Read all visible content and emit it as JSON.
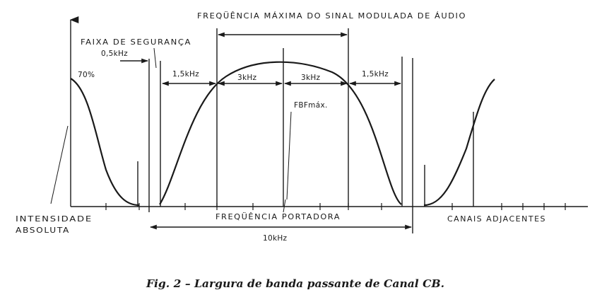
{
  "diagram": {
    "title_top": "FREQÜÊNCIA MÁXIMA DO SINAL MODULADA DE ÁUDIO",
    "faixa_label": "FAIXA DE SEGURANÇA",
    "label_05k": "0,5kHz",
    "label_70": "70%",
    "label_15k_left": "1,5kHz",
    "label_3k_left": "3kHz",
    "label_3k_right": "3kHz",
    "label_15k_right": "1,5kHz",
    "label_fbf": "FBFmáx.",
    "label_intensidade": "INTENSIDADE",
    "label_absoluta": "ABSOLUTA",
    "label_portadora": "FREQÜÊNCIA PORTADORA",
    "label_10k": "10kHz",
    "label_canais": "CANAIS ADJACENTES",
    "caption": "Fig. 2 – Largura de banda passante de Canal CB."
  }
}
